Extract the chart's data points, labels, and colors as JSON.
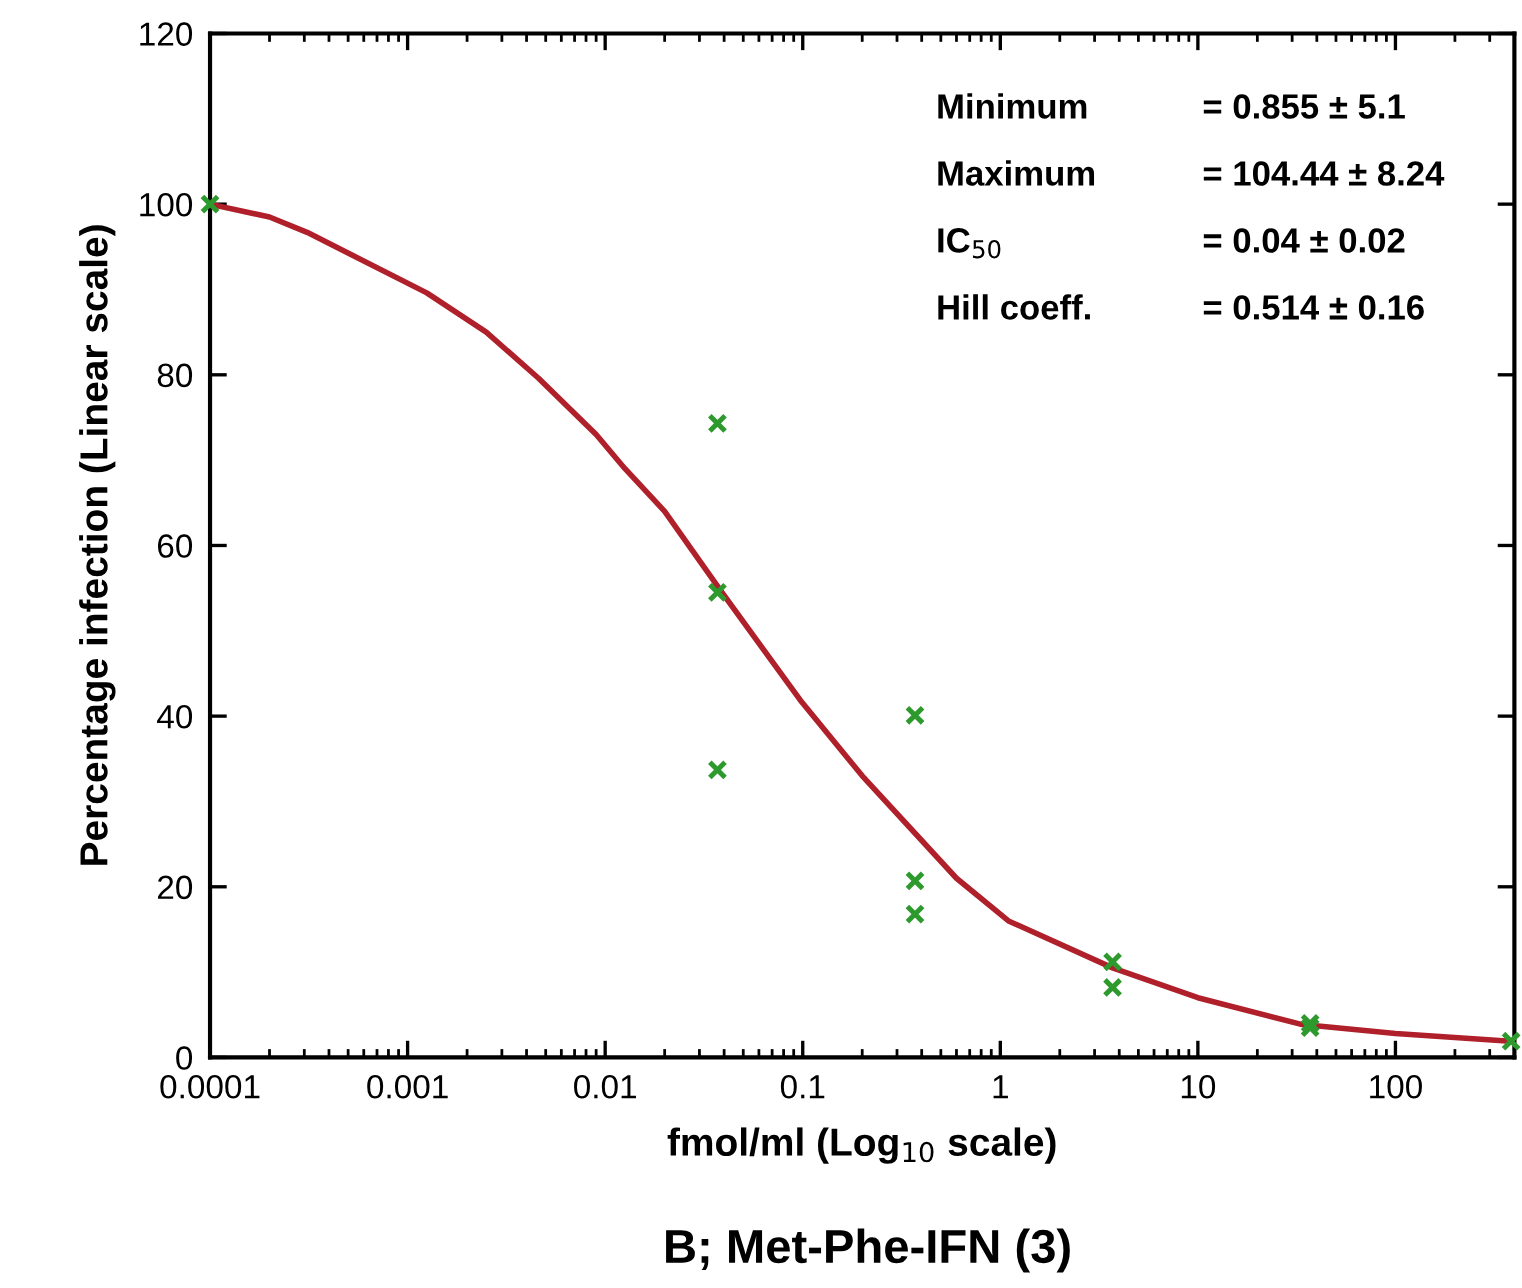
{
  "chart_data": {
    "type": "scatter",
    "title": "B; Met-Phe-IFN (3)",
    "xlabel": "fmol/ml (Log$_{10}$ scale)",
    "ylabel": "Percentage infection (Linear scale)",
    "log": "x",
    "xlim": [
      0.0001,
      400
    ],
    "xticks": [
      {
        "value": 0.0001,
        "label": "0.0001"
      },
      {
        "value": 0.001,
        "label": "0.001"
      },
      {
        "value": 0.01,
        "label": "0.01"
      },
      {
        "value": 0.1,
        "label": "0.1"
      },
      {
        "value": 1,
        "label": "1"
      },
      {
        "value": 10,
        "label": "10"
      },
      {
        "value": 100,
        "label": "100"
      }
    ],
    "ylim": [
      0,
      120
    ],
    "yticks": [
      0,
      20,
      40,
      60,
      80,
      100,
      120
    ],
    "grid": false,
    "legend": false,
    "series": [
      {
        "type": "line",
        "color": "#b0202a",
        "line_style": "solid",
        "marker": "none",
        "x": [
          0.0001,
          0.0002,
          0.00031,
          0.00125,
          0.0025,
          0.0046,
          0.009,
          0.0126,
          0.02,
          0.039,
          0.097,
          0.2,
          0.6,
          1.1,
          3.7,
          10,
          33,
          100,
          385
        ],
        "values": [
          100,
          98.5,
          96.7,
          89.6,
          85,
          79.6,
          73,
          69,
          64,
          54.5,
          41.9,
          33,
          21,
          16,
          10.5,
          7,
          3.9,
          2.8,
          1.9
        ]
      },
      {
        "color": "#2e9a2e",
        "marker": "cross",
        "x": [
          0.0001,
          0.037,
          0.037,
          0.037,
          0.37,
          0.37,
          0.37,
          3.7,
          3.7,
          37,
          37,
          385
        ],
        "values": [
          100,
          74.3,
          54.5,
          33.7,
          40.1,
          20.7,
          16.8,
          11.2,
          8.2,
          3.5,
          4,
          1.9
        ]
      }
    ],
    "annotations": [
      "Minimum = 0.855 ± 5.1",
      "Maximum = 104.44 ± 8.24",
      "IC$_{50}$ = 0.04 ± 0.02",
      "Hill coeff. = 0.514 ± 0.16"
    ]
  }
}
